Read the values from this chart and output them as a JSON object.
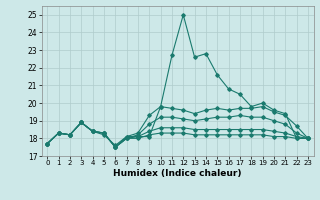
{
  "xlabel": "Humidex (Indice chaleur)",
  "ylabel": "",
  "xlim": [
    -0.5,
    23.5
  ],
  "ylim": [
    17,
    25.5
  ],
  "yticks": [
    17,
    18,
    19,
    20,
    21,
    22,
    23,
    24,
    25
  ],
  "xticks": [
    0,
    1,
    2,
    3,
    4,
    5,
    6,
    7,
    8,
    9,
    10,
    11,
    12,
    13,
    14,
    15,
    16,
    17,
    18,
    19,
    20,
    21,
    22,
    23
  ],
  "bg_color": "#cde8e8",
  "line_color": "#1a7a6e",
  "grid_color": "#b0cccc",
  "lines": [
    [
      17.7,
      18.3,
      18.2,
      18.9,
      18.4,
      18.3,
      17.5,
      18.1,
      18.1,
      18.1,
      19.8,
      22.7,
      25.0,
      22.6,
      22.8,
      21.6,
      20.8,
      20.5,
      19.8,
      20.0,
      19.6,
      19.4,
      18.0,
      18.0
    ],
    [
      17.7,
      18.3,
      18.2,
      18.9,
      18.4,
      18.2,
      17.6,
      18.1,
      18.3,
      19.3,
      19.8,
      19.7,
      19.6,
      19.4,
      19.6,
      19.7,
      19.6,
      19.7,
      19.7,
      19.8,
      19.5,
      19.3,
      18.7,
      18.0
    ],
    [
      17.7,
      18.3,
      18.2,
      18.9,
      18.4,
      18.3,
      17.5,
      18.0,
      18.2,
      18.8,
      19.2,
      19.2,
      19.1,
      19.0,
      19.1,
      19.2,
      19.2,
      19.3,
      19.2,
      19.2,
      19.0,
      18.8,
      18.3,
      18.0
    ],
    [
      17.7,
      18.3,
      18.2,
      18.9,
      18.4,
      18.3,
      17.5,
      18.0,
      18.1,
      18.4,
      18.6,
      18.6,
      18.6,
      18.5,
      18.5,
      18.5,
      18.5,
      18.5,
      18.5,
      18.5,
      18.4,
      18.3,
      18.1,
      18.0
    ],
    [
      17.7,
      18.3,
      18.2,
      18.9,
      18.4,
      18.3,
      17.5,
      18.0,
      18.0,
      18.2,
      18.3,
      18.3,
      18.3,
      18.2,
      18.2,
      18.2,
      18.2,
      18.2,
      18.2,
      18.2,
      18.1,
      18.1,
      18.0,
      18.0
    ]
  ]
}
